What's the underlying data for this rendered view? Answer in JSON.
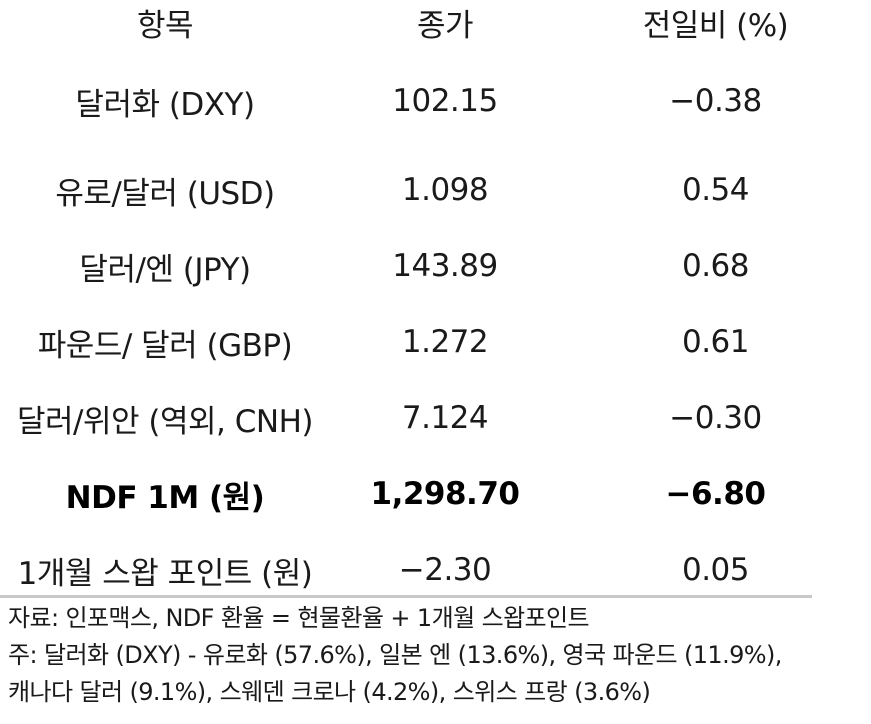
{
  "table": {
    "headers": [
      "항목",
      "종가",
      "전일비 (%)"
    ],
    "rows": [
      {
        "item": "달러화 (DXY)",
        "close": "102.15",
        "change": "−0.38"
      },
      {
        "item": "유로/달러 (USD)",
        "close": "1.098",
        "change": "0.54"
      },
      {
        "item": "달러/엔 (JPY)",
        "close": "143.89",
        "change": "0.68"
      },
      {
        "item": "파운드/ 달러 (GBP)",
        "close": "1.272",
        "change": "0.61"
      },
      {
        "item": "달러/위안 (역외, CNH)",
        "close": "7.124",
        "change": "−0.30"
      },
      {
        "item": "NDF 1M (원)",
        "close": "1,298.70",
        "change": "−6.80"
      },
      {
        "item": "1개월 스왑 포인트 (원)",
        "close": "−2.30",
        "change": "0.05"
      }
    ]
  },
  "notes": {
    "source": "자료: 인포맥스, NDF 환율 = 현물환율 + 1개월 스왑포인트",
    "note_line1": "주: 달러화 (DXY) - 유로화 (57.6%), 일본 엔 (13.6%), 영국 파운드 (11.9%),",
    "note_line2": "캐나다 달러 (9.1%), 스웨덴 크로나 (4.2%), 스위스 프랑 (3.6%)"
  }
}
